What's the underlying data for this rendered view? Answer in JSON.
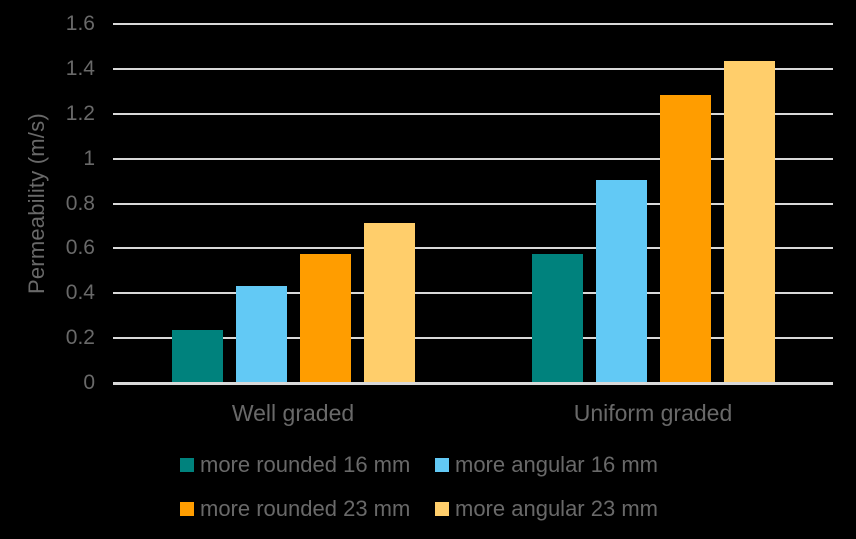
{
  "chart_data": {
    "type": "bar",
    "ylabel": "Permeability (m/s)",
    "categories": [
      "Well graded",
      "Uniform graded"
    ],
    "series": [
      {
        "name": "more rounded 16 mm",
        "color": "#00827D",
        "values": [
          0.23,
          0.57
        ]
      },
      {
        "name": "more angular 16 mm",
        "color": "#62C9F5",
        "values": [
          0.43,
          0.9
        ]
      },
      {
        "name": "more rounded 23 mm",
        "color": "#FF9D00",
        "values": [
          0.57,
          1.28
        ]
      },
      {
        "name": "more angular 23 mm",
        "color": "#FFCE6B",
        "values": [
          0.71,
          1.43
        ]
      }
    ],
    "ylim": [
      0,
      1.6
    ],
    "ytick_step": 0.2,
    "yticks": [
      "0",
      "0.2",
      "0.4",
      "0.6",
      "0.8",
      "1",
      "1.2",
      "1.4",
      "1.6"
    ],
    "grid": true,
    "legend_position": "bottom",
    "colors": {
      "background": "#000000",
      "text": "#696969",
      "gridline": "#D9D9D9"
    }
  }
}
